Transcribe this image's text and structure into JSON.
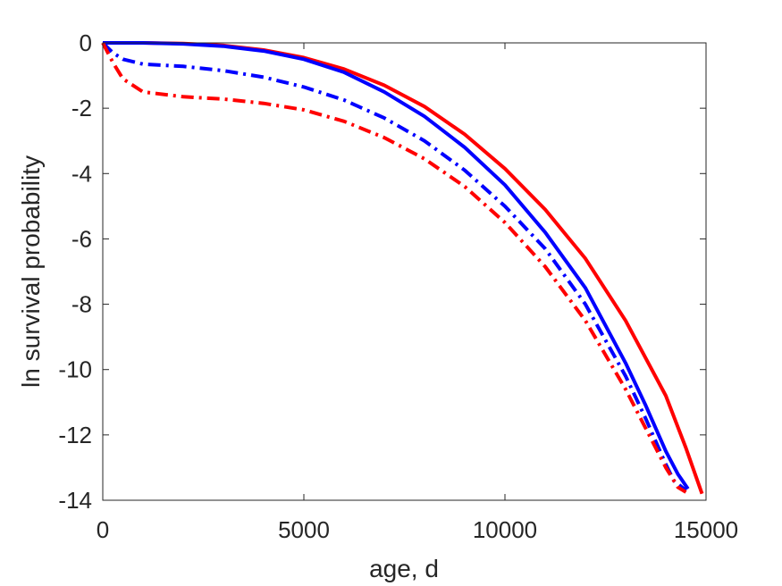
{
  "chart_data": {
    "type": "line",
    "title": "",
    "xlabel": "age, d",
    "ylabel": "ln survival probability",
    "xlim": [
      0,
      15000
    ],
    "ylim": [
      -14,
      0
    ],
    "xticks": [
      0,
      5000,
      10000,
      15000
    ],
    "yticks": [
      0,
      -2,
      -4,
      -6,
      -8,
      -10,
      -12,
      -14
    ],
    "grid": false,
    "legend": "none",
    "series": [
      {
        "color": "#ff0000",
        "style": "solid",
        "x": [
          0,
          1000,
          2000,
          3000,
          4000,
          5000,
          6000,
          7000,
          8000,
          9000,
          10000,
          11000,
          12000,
          13000,
          14000,
          14500,
          14900
        ],
        "y": [
          0,
          0,
          -0.02,
          -0.08,
          -0.22,
          -0.45,
          -0.8,
          -1.3,
          -1.95,
          -2.8,
          -3.85,
          -5.1,
          -6.6,
          -8.5,
          -10.8,
          -12.4,
          -13.8
        ]
      },
      {
        "color": "#0000ff",
        "style": "solid",
        "x": [
          0,
          1000,
          2000,
          3000,
          4000,
          5000,
          6000,
          7000,
          8000,
          9000,
          10000,
          11000,
          12000,
          13000,
          13500,
          14000,
          14300,
          14550
        ],
        "y": [
          0,
          0,
          -0.03,
          -0.1,
          -0.25,
          -0.5,
          -0.9,
          -1.5,
          -2.25,
          -3.2,
          -4.35,
          -5.8,
          -7.5,
          -9.8,
          -11.1,
          -12.5,
          -13.2,
          -13.65
        ]
      },
      {
        "color": "#0000ff",
        "style": "dashdot",
        "x": [
          0,
          250,
          500,
          1000,
          2000,
          3000,
          4000,
          5000,
          6000,
          7000,
          8000,
          9000,
          10000,
          11000,
          12000,
          13000,
          13500,
          14000,
          14200,
          14500
        ],
        "y": [
          0,
          -0.3,
          -0.5,
          -0.65,
          -0.72,
          -0.85,
          -1.05,
          -1.35,
          -1.75,
          -2.3,
          -3.0,
          -3.9,
          -5.0,
          -6.3,
          -8.0,
          -10.2,
          -11.5,
          -12.9,
          -13.4,
          -13.7
        ]
      },
      {
        "color": "#ff0000",
        "style": "dashdot",
        "x": [
          0,
          250,
          500,
          1000,
          2000,
          3000,
          4000,
          5000,
          6000,
          7000,
          8000,
          9000,
          10000,
          11000,
          12000,
          13000,
          13500,
          14000,
          14300,
          14500
        ],
        "y": [
          0,
          -0.6,
          -1.1,
          -1.5,
          -1.65,
          -1.72,
          -1.85,
          -2.05,
          -2.4,
          -2.9,
          -3.55,
          -4.4,
          -5.5,
          -6.85,
          -8.5,
          -10.6,
          -11.8,
          -13.0,
          -13.6,
          -13.75
        ]
      }
    ]
  }
}
